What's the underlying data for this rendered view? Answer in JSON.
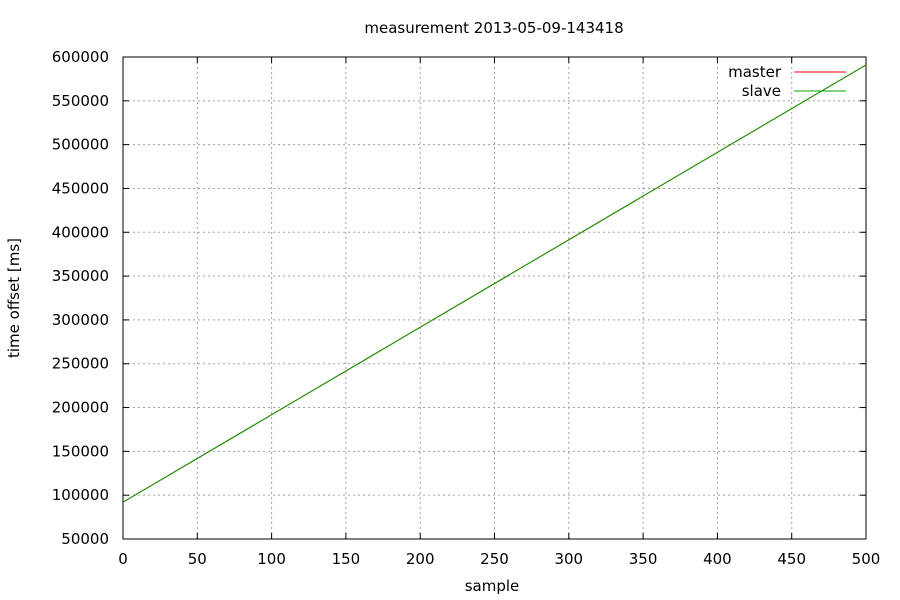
{
  "chart_data": {
    "type": "line",
    "title": "measurement 2013-05-09-143418",
    "xlabel": "sample",
    "ylabel": "time offset [ms]",
    "xlim": [
      0,
      500
    ],
    "ylim": [
      50000,
      600000
    ],
    "x_ticks": [
      0,
      50,
      100,
      150,
      200,
      250,
      300,
      350,
      400,
      450,
      500
    ],
    "y_ticks": [
      50000,
      100000,
      150000,
      200000,
      250000,
      300000,
      350000,
      400000,
      450000,
      500000,
      550000,
      600000
    ],
    "grid": true,
    "legend_position": "top-right",
    "series": [
      {
        "name": "master",
        "color": "#ff0000",
        "x": [
          0,
          500
        ],
        "y": [
          92000,
          591000
        ]
      },
      {
        "name": "slave",
        "color": "#00a000",
        "x": [
          0,
          500
        ],
        "y": [
          92000,
          591000
        ]
      }
    ]
  }
}
